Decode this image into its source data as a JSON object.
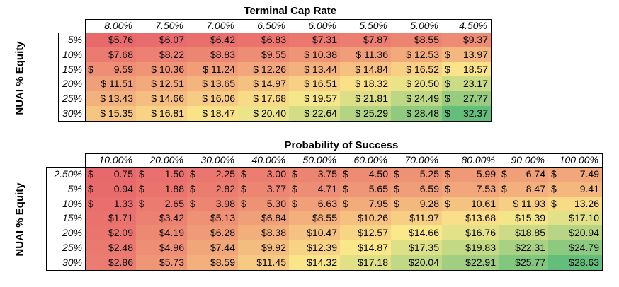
{
  "tables": [
    {
      "title": "Terminal Cap Rate",
      "y_label": "NUAI % Equity",
      "columns": [
        "8.00%",
        "7.50%",
        "7.00%",
        "6.50%",
        "6.00%",
        "5.50%",
        "5.00%",
        "4.50%"
      ],
      "rows": [
        {
          "label": "5%",
          "cells": [
            {
              "d": "",
              "n": "$5.76"
            },
            {
              "d": "",
              "n": "$6.07"
            },
            {
              "d": "",
              "n": "$6.42"
            },
            {
              "d": "",
              "n": "$6.83"
            },
            {
              "d": "",
              "n": "$7.31"
            },
            {
              "d": "",
              "n": "$7.87"
            },
            {
              "d": "",
              "n": "$8.55"
            },
            {
              "d": "",
              "n": "$9.37"
            }
          ]
        },
        {
          "label": "10%",
          "cells": [
            {
              "d": "",
              "n": "$7.68"
            },
            {
              "d": "",
              "n": "$8.22"
            },
            {
              "d": "",
              "n": "$8.83"
            },
            {
              "d": "",
              "n": "$9.55"
            },
            {
              "d": "",
              "n": "$ 10.38"
            },
            {
              "d": "",
              "n": "$ 11.36"
            },
            {
              "d": "",
              "n": "$ 12.53"
            },
            {
              "d": "$",
              "n": "13.97"
            }
          ]
        },
        {
          "label": "15%",
          "cells": [
            {
              "d": "$",
              "n": "9.59"
            },
            {
              "d": "",
              "n": "$ 10.36"
            },
            {
              "d": "",
              "n": "$ 11.24"
            },
            {
              "d": "",
              "n": "$ 12.26"
            },
            {
              "d": "",
              "n": "$ 13.44"
            },
            {
              "d": "",
              "n": "$ 14.84"
            },
            {
              "d": "",
              "n": "$ 16.52"
            },
            {
              "d": "$",
              "n": "18.57"
            }
          ]
        },
        {
          "label": "20%",
          "cells": [
            {
              "d": "",
              "n": "$ 11.51"
            },
            {
              "d": "",
              "n": "$ 12.51"
            },
            {
              "d": "",
              "n": "$ 13.65"
            },
            {
              "d": "",
              "n": "$ 14.97"
            },
            {
              "d": "",
              "n": "$ 16.51"
            },
            {
              "d": "",
              "n": "$ 18.32"
            },
            {
              "d": "",
              "n": "$ 20.50"
            },
            {
              "d": "$",
              "n": "23.17"
            }
          ]
        },
        {
          "label": "25%",
          "cells": [
            {
              "d": "",
              "n": "$ 13.43"
            },
            {
              "d": "",
              "n": "$ 14.66"
            },
            {
              "d": "",
              "n": "$ 16.06"
            },
            {
              "d": "",
              "n": "$ 17.68"
            },
            {
              "d": "",
              "n": "$ 19.57"
            },
            {
              "d": "",
              "n": "$ 21.81"
            },
            {
              "d": "",
              "n": "$ 24.49"
            },
            {
              "d": "$",
              "n": "27.77"
            }
          ]
        },
        {
          "label": "30%",
          "cells": [
            {
              "d": "",
              "n": "$ 15.35"
            },
            {
              "d": "",
              "n": "$ 16.81"
            },
            {
              "d": "",
              "n": "$ 18.47"
            },
            {
              "d": "",
              "n": "$ 20.40"
            },
            {
              "d": "",
              "n": "$ 22.64"
            },
            {
              "d": "",
              "n": "$ 25.29"
            },
            {
              "d": "",
              "n": "$ 28.48"
            },
            {
              "d": "$",
              "n": "32.37"
            }
          ]
        }
      ],
      "values": [
        [
          5.76,
          6.07,
          6.42,
          6.83,
          7.31,
          7.87,
          8.55,
          9.37
        ],
        [
          7.68,
          8.22,
          8.83,
          9.55,
          10.38,
          11.36,
          12.53,
          13.97
        ],
        [
          9.59,
          10.36,
          11.24,
          12.26,
          13.44,
          14.84,
          16.52,
          18.57
        ],
        [
          11.51,
          12.51,
          13.65,
          14.97,
          16.51,
          18.32,
          20.5,
          23.17
        ],
        [
          13.43,
          14.66,
          16.06,
          17.68,
          19.57,
          21.81,
          24.49,
          27.77
        ],
        [
          15.35,
          16.81,
          18.47,
          20.4,
          22.64,
          25.29,
          28.48,
          32.37
        ]
      ]
    },
    {
      "title": "Probability of Success",
      "y_label": "NUAI % Equity",
      "columns": [
        "10.00%",
        "20.00%",
        "30.00%",
        "40.00%",
        "50.00%",
        "60.00%",
        "70.00%",
        "80.00%",
        "90.00%",
        "100.00%"
      ],
      "rows": [
        {
          "label": "2.50%",
          "cells": [
            {
              "d": "$",
              "n": "0.75"
            },
            {
              "d": "$",
              "n": "1.50"
            },
            {
              "d": "$",
              "n": "2.25"
            },
            {
              "d": "$",
              "n": "3.00"
            },
            {
              "d": "$",
              "n": "3.75"
            },
            {
              "d": "$",
              "n": "4.50"
            },
            {
              "d": "$",
              "n": "5.25"
            },
            {
              "d": "$",
              "n": "5.99"
            },
            {
              "d": "$",
              "n": "6.74"
            },
            {
              "d": "$",
              "n": "7.49"
            }
          ]
        },
        {
          "label": "5%",
          "cells": [
            {
              "d": "$",
              "n": "0.94"
            },
            {
              "d": "$",
              "n": "1.88"
            },
            {
              "d": "$",
              "n": "2.82"
            },
            {
              "d": "$",
              "n": "3.77"
            },
            {
              "d": "$",
              "n": "4.71"
            },
            {
              "d": "$",
              "n": "5.65"
            },
            {
              "d": "$",
              "n": "6.59"
            },
            {
              "d": "$",
              "n": "7.53"
            },
            {
              "d": "$",
              "n": "8.47"
            },
            {
              "d": "$",
              "n": "9.41"
            }
          ]
        },
        {
          "label": "10%",
          "cells": [
            {
              "d": "$",
              "n": "1.33"
            },
            {
              "d": "$",
              "n": "2.65"
            },
            {
              "d": "$",
              "n": "3.98"
            },
            {
              "d": "$",
              "n": "5.30"
            },
            {
              "d": "$",
              "n": "6.63"
            },
            {
              "d": "$",
              "n": "7.95"
            },
            {
              "d": "$",
              "n": "9.28"
            },
            {
              "d": "$",
              "n": "10.61"
            },
            {
              "d": "",
              "n": "$ 11.93"
            },
            {
              "d": "$",
              "n": "13.26"
            }
          ]
        },
        {
          "label": "15%",
          "cells": [
            {
              "d": "",
              "n": "$1.71"
            },
            {
              "d": "",
              "n": "$3.42"
            },
            {
              "d": "",
              "n": "$5.13"
            },
            {
              "d": "",
              "n": "$6.84"
            },
            {
              "d": "",
              "n": "$8.55"
            },
            {
              "d": "",
              "n": "$10.26"
            },
            {
              "d": "",
              "n": "$11.97"
            },
            {
              "d": "",
              "n": "$13.68"
            },
            {
              "d": "",
              "n": "$15.39"
            },
            {
              "d": "",
              "n": "$17.10"
            }
          ]
        },
        {
          "label": "20%",
          "cells": [
            {
              "d": "",
              "n": "$2.09"
            },
            {
              "d": "",
              "n": "$4.19"
            },
            {
              "d": "",
              "n": "$6.28"
            },
            {
              "d": "",
              "n": "$8.38"
            },
            {
              "d": "",
              "n": "$10.47"
            },
            {
              "d": "",
              "n": "$12.57"
            },
            {
              "d": "",
              "n": "$14.66"
            },
            {
              "d": "",
              "n": "$16.76"
            },
            {
              "d": "",
              "n": "$18.85"
            },
            {
              "d": "",
              "n": "$20.94"
            }
          ]
        },
        {
          "label": "25%",
          "cells": [
            {
              "d": "",
              "n": "$2.48"
            },
            {
              "d": "",
              "n": "$4.96"
            },
            {
              "d": "",
              "n": "$7.44"
            },
            {
              "d": "",
              "n": "$9.92"
            },
            {
              "d": "",
              "n": "$12.39"
            },
            {
              "d": "",
              "n": "$14.87"
            },
            {
              "d": "",
              "n": "$17.35"
            },
            {
              "d": "",
              "n": "$19.83"
            },
            {
              "d": "",
              "n": "$22.31"
            },
            {
              "d": "",
              "n": "$24.79"
            }
          ]
        },
        {
          "label": "30%",
          "cells": [
            {
              "d": "",
              "n": "$2.86"
            },
            {
              "d": "",
              "n": "$5.73"
            },
            {
              "d": "",
              "n": "$8.59"
            },
            {
              "d": "",
              "n": "$11.45"
            },
            {
              "d": "",
              "n": "$14.32"
            },
            {
              "d": "",
              "n": "$17.18"
            },
            {
              "d": "",
              "n": "$20.04"
            },
            {
              "d": "",
              "n": "$22.91"
            },
            {
              "d": "",
              "n": "$25.77"
            },
            {
              "d": "",
              "n": "$28.63"
            }
          ]
        }
      ],
      "values": [
        [
          0.75,
          1.5,
          2.25,
          3.0,
          3.75,
          4.5,
          5.25,
          5.99,
          6.74,
          7.49
        ],
        [
          0.94,
          1.88,
          2.82,
          3.77,
          4.71,
          5.65,
          6.59,
          7.53,
          8.47,
          9.41
        ],
        [
          1.33,
          2.65,
          3.98,
          5.3,
          6.63,
          7.95,
          9.28,
          10.61,
          11.93,
          13.26
        ],
        [
          1.71,
          3.42,
          5.13,
          6.84,
          8.55,
          10.26,
          11.97,
          13.68,
          15.39,
          17.1
        ],
        [
          2.09,
          4.19,
          6.28,
          8.38,
          10.47,
          12.57,
          14.66,
          16.76,
          18.85,
          20.94
        ],
        [
          2.48,
          4.96,
          7.44,
          9.92,
          12.39,
          14.87,
          17.35,
          19.83,
          22.31,
          24.79
        ],
        [
          2.86,
          5.73,
          8.59,
          11.45,
          14.32,
          17.18,
          20.04,
          22.91,
          25.77,
          28.63
        ]
      ]
    }
  ],
  "colors": {
    "low": "#e8696c",
    "mid": "#fbe88a",
    "high": "#63be7b"
  }
}
